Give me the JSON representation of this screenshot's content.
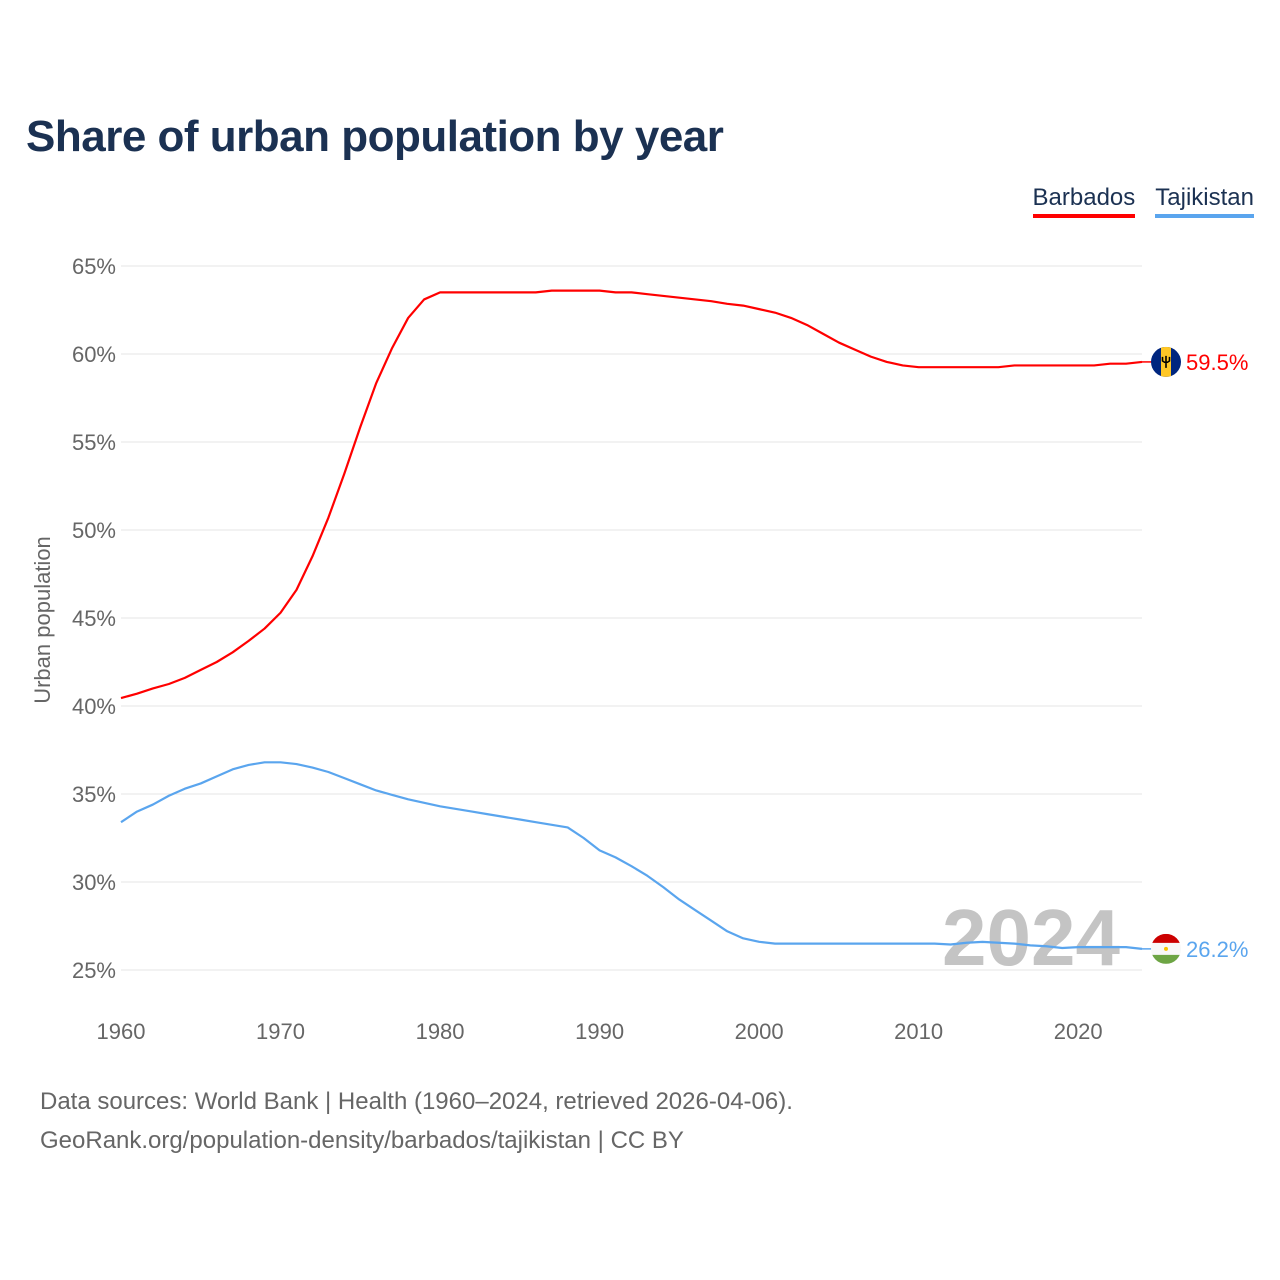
{
  "title": "Share of urban population by year",
  "legend": [
    {
      "label": "Barbados",
      "color": "#ff0000"
    },
    {
      "label": "Tajikistan",
      "color": "#5aa5ee"
    }
  ],
  "year_watermark": "2024",
  "footer": {
    "line1": "Data sources: World Bank | Health (1960–2024, retrieved 2026-04-06).",
    "line2": "GeoRank.org/population-density/barbados/tajikistan | CC BY"
  },
  "chart_data": {
    "type": "line",
    "title": "Share of urban population by year",
    "xlabel": "",
    "ylabel": "Urban population",
    "xlim": [
      1960,
      2024
    ],
    "ylim": [
      25,
      65
    ],
    "xticks": [
      1960,
      1970,
      1980,
      1990,
      2000,
      2010,
      2020
    ],
    "yticks": [
      25,
      30,
      35,
      40,
      45,
      50,
      55,
      60,
      65
    ],
    "ytick_labels": [
      "25%",
      "30%",
      "35%",
      "40%",
      "45%",
      "50%",
      "55%",
      "60%",
      "65%"
    ],
    "grid": true,
    "legend_position": "top-right",
    "x": [
      1960,
      1961,
      1962,
      1963,
      1964,
      1965,
      1966,
      1967,
      1968,
      1969,
      1970,
      1971,
      1972,
      1973,
      1974,
      1975,
      1976,
      1977,
      1978,
      1979,
      1980,
      1981,
      1982,
      1983,
      1984,
      1985,
      1986,
      1987,
      1988,
      1989,
      1990,
      1991,
      1992,
      1993,
      1994,
      1995,
      1996,
      1997,
      1998,
      1999,
      2000,
      2001,
      2002,
      2003,
      2004,
      2005,
      2006,
      2007,
      2008,
      2009,
      2010,
      2011,
      2012,
      2013,
      2014,
      2015,
      2016,
      2017,
      2018,
      2019,
      2020,
      2021,
      2022,
      2023,
      2024
    ],
    "series": [
      {
        "name": "Barbados",
        "color": "#ff0000",
        "end_label": "59.5%",
        "flag": "barbados-flag",
        "values": [
          40.45,
          40.7,
          41.0,
          41.25,
          41.6,
          42.05,
          42.5,
          43.05,
          43.7,
          44.4,
          45.3,
          46.6,
          48.5,
          50.7,
          53.2,
          55.85,
          58.35,
          60.35,
          62.05,
          63.1,
          63.5,
          63.5,
          63.5,
          63.5,
          63.5,
          63.5,
          63.5,
          63.6,
          63.6,
          63.6,
          63.6,
          63.5,
          63.5,
          63.4,
          63.3,
          63.2,
          63.1,
          63.0,
          62.85,
          62.75,
          62.55,
          62.35,
          62.05,
          61.65,
          61.15,
          60.65,
          60.25,
          59.85,
          59.55,
          59.35,
          59.25,
          59.25,
          59.25,
          59.25,
          59.25,
          59.25,
          59.35,
          59.35,
          59.35,
          59.35,
          59.35,
          59.35,
          59.45,
          59.45,
          59.55
        ]
      },
      {
        "name": "Tajikistan",
        "color": "#5aa5ee",
        "end_label": "26.2%",
        "flag": "tajikistan-flag",
        "values": [
          33.4,
          34.0,
          34.4,
          34.9,
          35.3,
          35.6,
          36.0,
          36.4,
          36.65,
          36.8,
          36.8,
          36.7,
          36.5,
          36.25,
          35.9,
          35.55,
          35.2,
          34.95,
          34.7,
          34.5,
          34.3,
          34.15,
          34.0,
          33.85,
          33.7,
          33.55,
          33.4,
          33.25,
          33.1,
          32.5,
          31.8,
          31.4,
          30.9,
          30.35,
          29.7,
          29.0,
          28.4,
          27.8,
          27.2,
          26.8,
          26.6,
          26.5,
          26.5,
          26.5,
          26.5,
          26.5,
          26.5,
          26.5,
          26.5,
          26.5,
          26.5,
          26.5,
          26.45,
          26.55,
          26.6,
          26.55,
          26.5,
          26.4,
          26.35,
          26.25,
          26.3,
          26.3,
          26.3,
          26.3,
          26.2
        ]
      }
    ]
  }
}
